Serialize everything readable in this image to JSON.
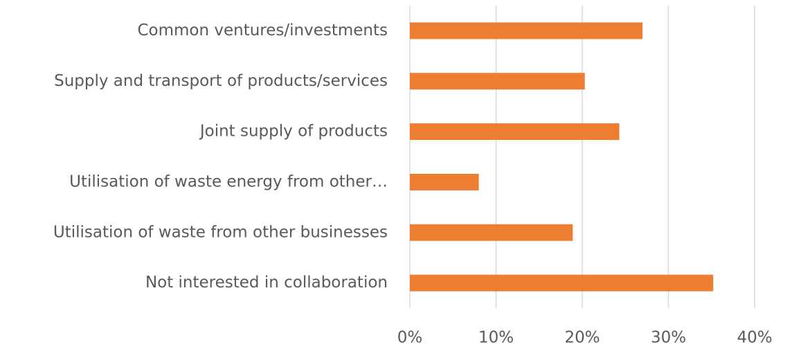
{
  "chart_data": {
    "type": "barh",
    "categories": [
      "Common ventures/investments",
      "Supply and transport of products/services",
      "Joint supply of products",
      "Utilisation of waste energy from other…",
      "Utilisation of waste from other businesses",
      "Not interested in collaboration"
    ],
    "values": [
      27.0,
      20.3,
      24.3,
      8.0,
      18.9,
      35.2
    ],
    "color": "#ed7d31",
    "xlim": [
      0,
      40
    ],
    "xticks": [
      {
        "value": 0,
        "label": "0%"
      },
      {
        "value": 10,
        "label": "10%"
      },
      {
        "value": 20,
        "label": "20%"
      },
      {
        "value": 30,
        "label": "30%"
      },
      {
        "value": 40,
        "label": "40%"
      }
    ],
    "grid": true
  }
}
